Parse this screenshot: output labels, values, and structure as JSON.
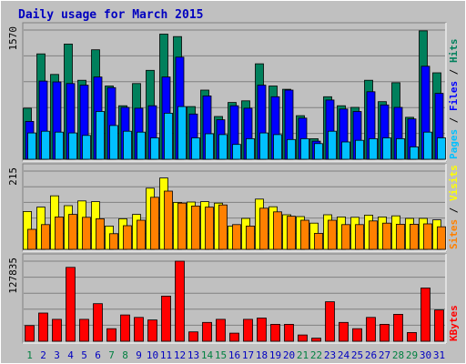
{
  "title": "Daily usage for March 2015",
  "days": [
    "1",
    "2",
    "3",
    "4",
    "5",
    "6",
    "7",
    "8",
    "9",
    "10",
    "11",
    "12",
    "13",
    "14",
    "15",
    "16",
    "17",
    "18",
    "19",
    "20",
    "21",
    "22",
    "23",
    "24",
    "25",
    "26",
    "27",
    "28",
    "29",
    "30",
    "31"
  ],
  "weekend_days": [
    1,
    7,
    8,
    14,
    15,
    21,
    22,
    28,
    29
  ],
  "colors": {
    "background": "#c0c0c0",
    "panel": "#c0c0c0",
    "title": "#0000c0",
    "hits": "#00805c",
    "files": "#0000ff",
    "pages": "#00c0ff",
    "visits": "#ffff00",
    "sites": "#ff8000",
    "kbytes": "#ff0000",
    "weekday_label": "#0000c0",
    "weekend_label": "#008040"
  },
  "chart_data": [
    {
      "type": "bar",
      "name": "hits-files-pages",
      "ymax_label": "1570",
      "ylim": [
        0,
        1570
      ],
      "legend": [
        "Pages",
        "Files",
        "Hits"
      ],
      "series": [
        {
          "name": "Hits",
          "values": [
            620,
            1280,
            1030,
            1400,
            960,
            1330,
            890,
            650,
            920,
            1080,
            1520,
            1490,
            640,
            840,
            520,
            690,
            710,
            1160,
            890,
            850,
            530,
            250,
            760,
            650,
            630,
            960,
            700,
            930,
            510,
            1560,
            1050
          ]
        },
        {
          "name": "Files",
          "values": [
            460,
            950,
            940,
            920,
            900,
            1000,
            870,
            630,
            620,
            650,
            1000,
            1240,
            550,
            770,
            480,
            650,
            620,
            900,
            760,
            840,
            500,
            220,
            720,
            610,
            580,
            820,
            660,
            630,
            490,
            1130,
            800
          ]
        },
        {
          "name": "Pages",
          "values": [
            320,
            340,
            330,
            320,
            290,
            580,
            410,
            340,
            330,
            260,
            560,
            640,
            260,
            310,
            300,
            180,
            250,
            320,
            300,
            240,
            250,
            190,
            340,
            210,
            230,
            250,
            260,
            250,
            150,
            330,
            260
          ]
        }
      ]
    },
    {
      "type": "bar",
      "name": "visits-sites",
      "ymax_label": "215",
      "ylim": [
        0,
        215
      ],
      "legend": [
        "Sites",
        "Visits"
      ],
      "series": [
        {
          "name": "Visits",
          "values": [
            104,
            116,
            147,
            120,
            133,
            131,
            64,
            84,
            96,
            168,
            196,
            129,
            130,
            131,
            127,
            64,
            85,
            138,
            117,
            95,
            90,
            72,
            95,
            89,
            88,
            94,
            89,
            92,
            85,
            85,
            81
          ]
        },
        {
          "name": "Sites",
          "values": [
            55,
            68,
            89,
            96,
            88,
            84,
            43,
            65,
            80,
            143,
            160,
            127,
            119,
            116,
            122,
            68,
            64,
            113,
            103,
            91,
            80,
            44,
            80,
            68,
            68,
            78,
            72,
            69,
            69,
            70,
            62
          ]
        }
      ]
    },
    {
      "type": "bar",
      "name": "kbytes",
      "ymax_label": "127835",
      "ylim": [
        0,
        127835
      ],
      "legend": [
        "KBytes"
      ],
      "series": [
        {
          "name": "KBytes",
          "values": [
            25000,
            45000,
            35000,
            118000,
            35000,
            60000,
            20000,
            42000,
            38000,
            34000,
            72000,
            130000,
            15000,
            30000,
            35000,
            13000,
            35000,
            37000,
            27000,
            27000,
            10000,
            5000,
            63000,
            30000,
            20000,
            38000,
            27000,
            43000,
            14000,
            85000,
            50000
          ]
        }
      ]
    }
  ]
}
